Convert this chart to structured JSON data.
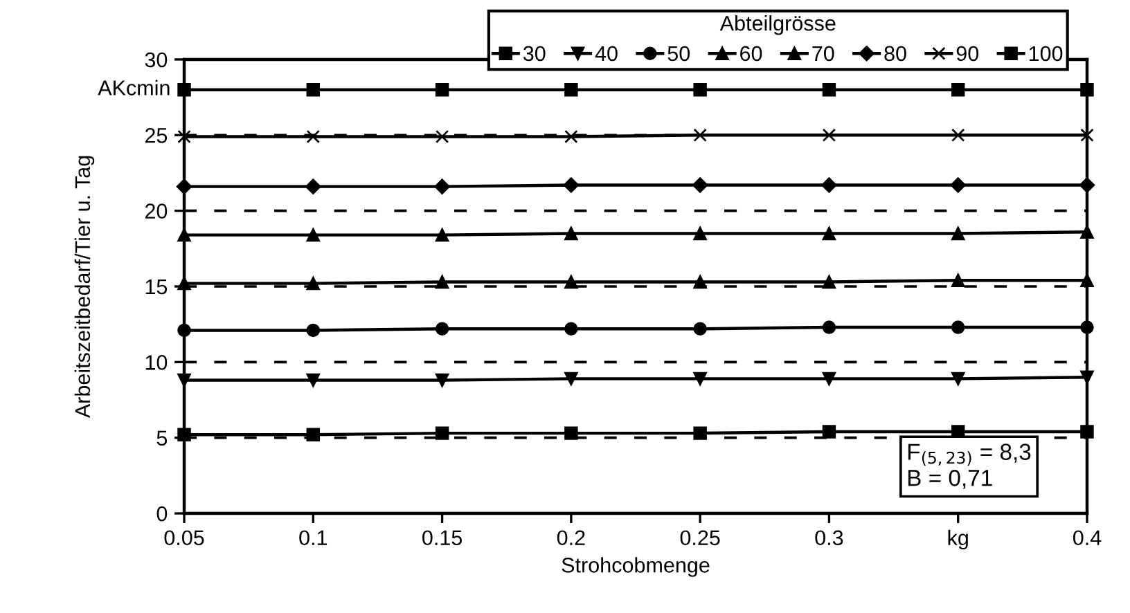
{
  "chart_data": {
    "type": "line",
    "ylabel": "Arbeitszeitbedarf/Tier u. Tag",
    "xlabel": "Strohcobmenge",
    "legend_title": "Abteilgrösse",
    "x": [
      0.05,
      0.1,
      0.15,
      0.2,
      0.25,
      0.3,
      0.35,
      0.4
    ],
    "series": [
      {
        "name": "30",
        "color": "#000000",
        "marker": "square",
        "values": [
          5.2,
          5.2,
          5.3,
          5.3,
          5.3,
          5.4,
          5.4,
          5.4
        ]
      },
      {
        "name": "40",
        "color": "#000000",
        "marker": "triangle_down",
        "values": [
          8.8,
          8.8,
          8.8,
          8.9,
          8.9,
          8.9,
          8.9,
          9.0
        ]
      },
      {
        "name": "50",
        "color": "#000000",
        "marker": "circle",
        "values": [
          12.1,
          12.1,
          12.2,
          12.2,
          12.2,
          12.3,
          12.3,
          12.3
        ]
      },
      {
        "name": "60",
        "color": "#000000",
        "marker": "triangle",
        "values": [
          15.2,
          15.2,
          15.3,
          15.3,
          15.3,
          15.3,
          15.4,
          15.4
        ]
      },
      {
        "name": "70",
        "color": "#000000",
        "marker": "triangle",
        "values": [
          18.4,
          18.4,
          18.4,
          18.5,
          18.5,
          18.5,
          18.5,
          18.6
        ]
      },
      {
        "name": "80",
        "color": "#000000",
        "marker": "diamond",
        "values": [
          21.6,
          21.6,
          21.6,
          21.7,
          21.7,
          21.7,
          21.7,
          21.7
        ]
      },
      {
        "name": "90",
        "color": "#000000",
        "marker": "cross",
        "values": [
          24.9,
          24.9,
          24.9,
          24.9,
          25.0,
          25.0,
          25.0,
          25.0
        ]
      },
      {
        "name": "100",
        "color": "#000000",
        "marker": "square",
        "values": [
          28.0,
          28.0,
          28.0,
          28.0,
          28.0,
          28.0,
          28.0,
          28.0
        ]
      }
    ],
    "xlim": [
      0.05,
      0.4
    ],
    "xticks": [
      0.05,
      0.1,
      0.15,
      0.2,
      0.25,
      0.3,
      {
        "value": 0.35,
        "label": "kg"
      },
      0.4
    ],
    "ylim": [
      0,
      30
    ],
    "yticks": [
      0,
      5,
      10,
      15,
      20,
      25,
      30
    ],
    "grid": "y",
    "legend": "top right",
    "line_style": "solid",
    "annotations": [
      "AKcmin",
      "F$_{(5,23)}$ = 8,3\nB = 0,71"
    ]
  }
}
